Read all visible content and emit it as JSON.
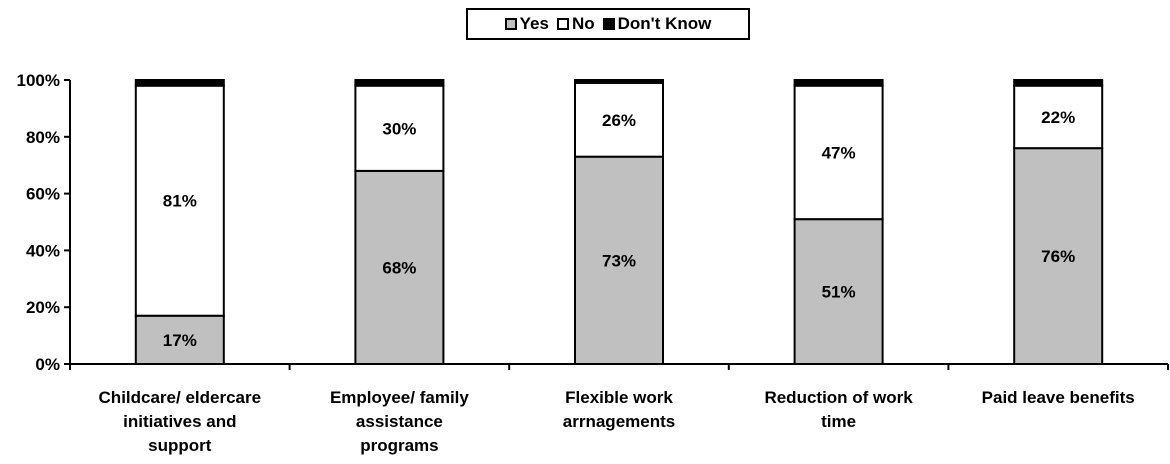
{
  "chart_data": {
    "type": "bar",
    "stacked": true,
    "categories": [
      [
        "Childcare/ eldercare",
        "initiatives and",
        "support"
      ],
      [
        "Employee/ family",
        "assistance",
        "programs"
      ],
      [
        "Flexible work",
        "arrnagements"
      ],
      [
        "Reduction of work",
        "time"
      ],
      [
        "Paid leave benefits"
      ]
    ],
    "series": [
      {
        "name": "Yes",
        "values": [
          17,
          68,
          73,
          51,
          76
        ],
        "color": "#c0c0c0",
        "data_labels": [
          "17%",
          "68%",
          "73%",
          "51%",
          "76%"
        ]
      },
      {
        "name": "No",
        "values": [
          81,
          30,
          26,
          47,
          22
        ],
        "color": "#ffffff",
        "data_labels": [
          "81%",
          "30%",
          "26%",
          "47%",
          "22%"
        ]
      },
      {
        "name": "Don't Know",
        "values": [
          2,
          2,
          1,
          2,
          2
        ],
        "color": "#000000"
      }
    ],
    "yticks": [
      "0%",
      "20%",
      "40%",
      "60%",
      "80%",
      "100%"
    ],
    "ylim": [
      0,
      100
    ],
    "grid": false,
    "legend_position": "top-center"
  }
}
